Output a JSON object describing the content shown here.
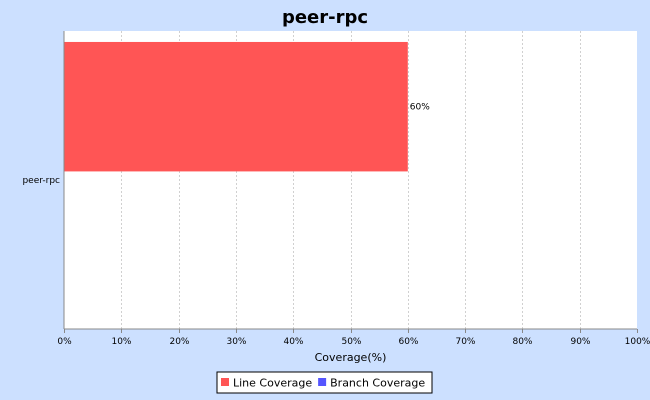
{
  "chart_data": {
    "type": "bar",
    "orientation": "horizontal",
    "title": "peer-rpc",
    "xlabel": "Coverage(%)",
    "ylabel": "",
    "categories": [
      "peer-rpc"
    ],
    "series": [
      {
        "name": "Line Coverage",
        "values": [
          60
        ],
        "color": "#ff5555",
        "data_labels": [
          "60%"
        ]
      },
      {
        "name": "Branch Coverage",
        "values": [
          null
        ],
        "color": "#5555ff",
        "data_labels": [
          ""
        ]
      }
    ],
    "xlim": [
      0,
      100
    ],
    "x_ticks": [
      0,
      10,
      20,
      30,
      40,
      50,
      60,
      70,
      80,
      90,
      100
    ],
    "x_tick_labels": [
      "0%",
      "10%",
      "20%",
      "30%",
      "40%",
      "50%",
      "60%",
      "70%",
      "80%",
      "90%",
      "100%"
    ],
    "grid": true,
    "legend_position": "bottom"
  },
  "colors": {
    "page_background": "#cce0ff",
    "plot_background": "#ffffff",
    "gridline": "#d0d0d0"
  }
}
